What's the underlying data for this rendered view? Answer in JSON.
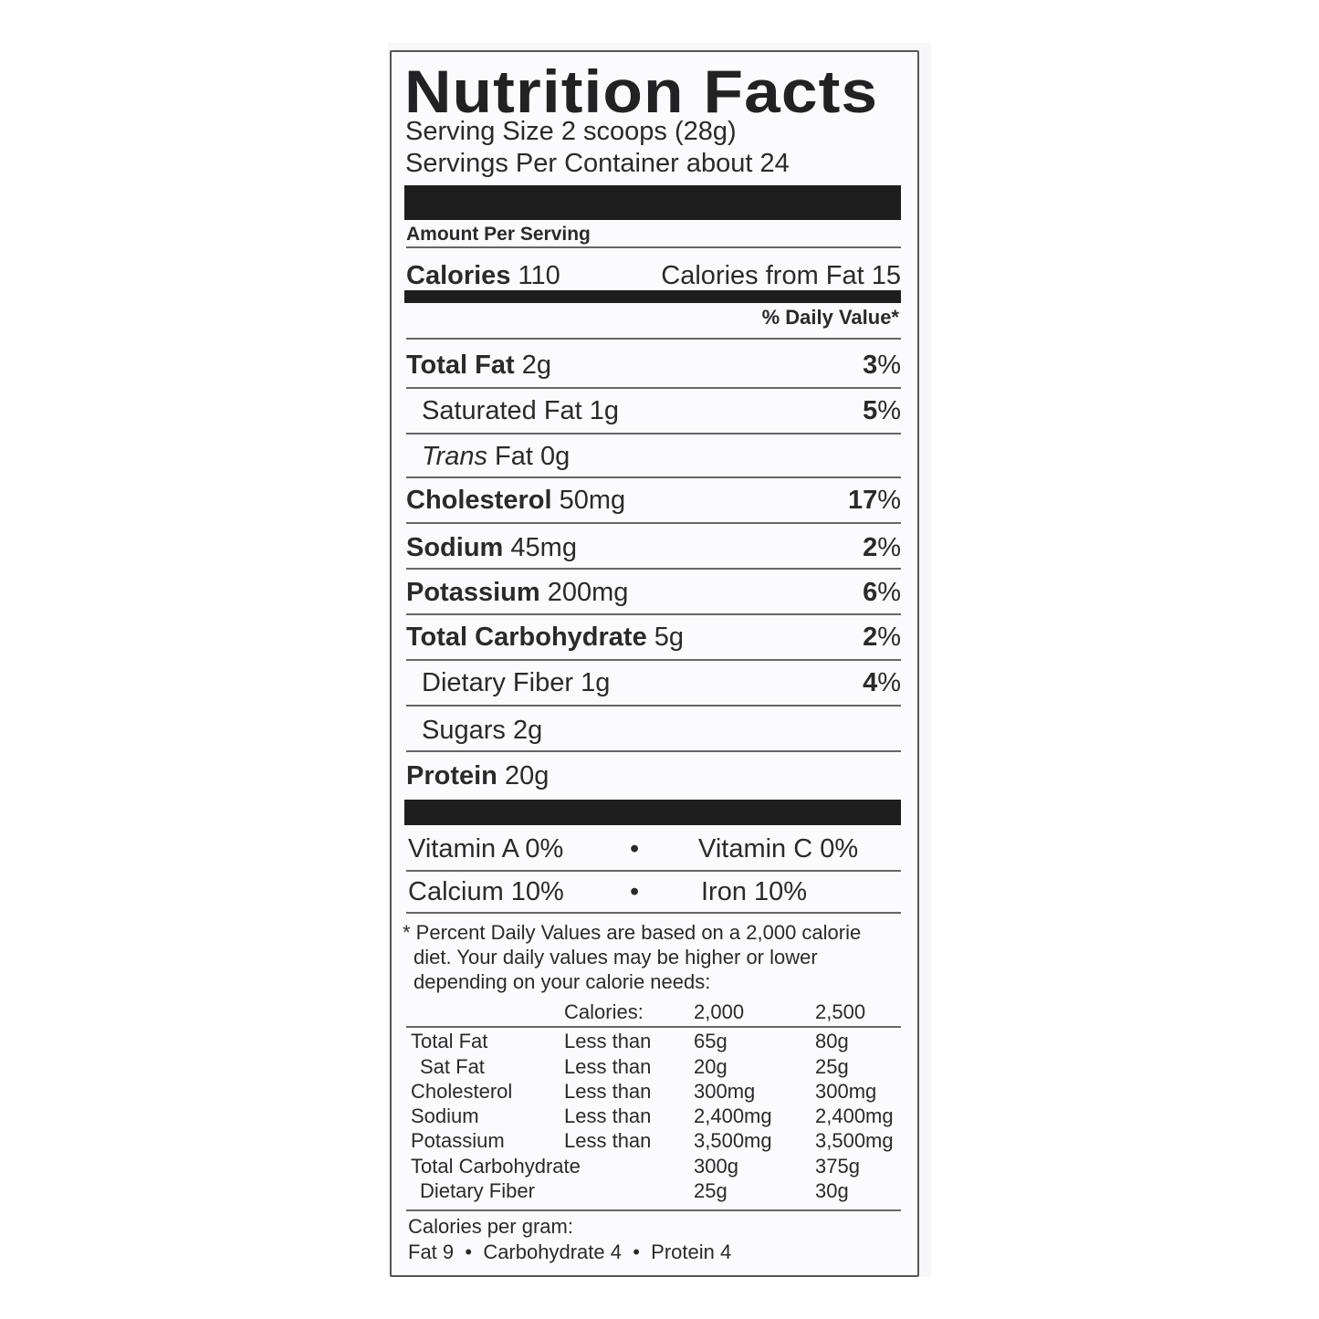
{
  "title": "Nutrition Facts",
  "serving_size": "Serving Size 2 scoops (28g)",
  "servings_per_container": "Servings Per Container about 24",
  "amount_per_serving": "Amount Per Serving",
  "calories": {
    "label": "Calories",
    "value": "110",
    "from_fat": "Calories from Fat 15"
  },
  "daily_value_header": "% Daily Value*",
  "nutrients": [
    {
      "name": "Total Fat",
      "amount": "2g",
      "dv": "3",
      "bold": true
    },
    {
      "name": "Saturated Fat",
      "amount": "1g",
      "dv": "5",
      "bold": false
    },
    {
      "name": "Trans",
      "name_rest": "Fat",
      "amount": "0g",
      "dv": "",
      "bold": false
    },
    {
      "name": "Cholesterol",
      "amount": "50mg",
      "dv": "17",
      "bold": true
    },
    {
      "name": "Sodium",
      "amount": "45mg",
      "dv": "2",
      "bold": true
    },
    {
      "name": "Potassium",
      "amount": "200mg",
      "dv": "6",
      "bold": true
    },
    {
      "name": "Total Carbohydrate",
      "amount": "5g",
      "dv": "2",
      "bold": true
    },
    {
      "name": "Dietary Fiber",
      "amount": "1g",
      "dv": "4",
      "bold": false
    },
    {
      "name": "Sugars",
      "amount": "2g",
      "dv": "",
      "bold": false
    },
    {
      "name": "Protein",
      "amount": "20g",
      "dv": "",
      "bold": true
    }
  ],
  "percent_sign": "%",
  "vitamins": [
    {
      "left": "Vitamin A 0%",
      "right": "Vitamin C 0%"
    },
    {
      "left": "Calcium 10%",
      "right": "Iron 10%"
    }
  ],
  "bullet": "•",
  "footnote": [
    "* Percent Daily Values are based on a 2,000 calorie",
    "diet. Your daily values may be higher or lower",
    "depending on your calorie needs:"
  ],
  "dv_table": {
    "header": [
      "",
      "Calories:",
      "2,000",
      "2,500"
    ],
    "rows": [
      [
        "Total Fat",
        "Less than",
        "65g",
        "80g"
      ],
      [
        "Sat Fat",
        "Less than",
        "20g",
        "25g"
      ],
      [
        "Cholesterol",
        "Less than",
        "300mg",
        "300mg"
      ],
      [
        "Sodium",
        "Less than",
        "2,400mg",
        "2,400mg"
      ],
      [
        "Potassium",
        "Less than",
        "3,500mg",
        "3,500mg"
      ],
      [
        "Total Carbohydrate",
        "",
        "300g",
        "375g"
      ],
      [
        "Dietary Fiber",
        "",
        "25g",
        "30g"
      ]
    ]
  },
  "calories_per_gram": {
    "label": "Calories per gram:",
    "items": [
      "Fat 9",
      "Carbohydrate 4",
      "Protein 4"
    ]
  }
}
